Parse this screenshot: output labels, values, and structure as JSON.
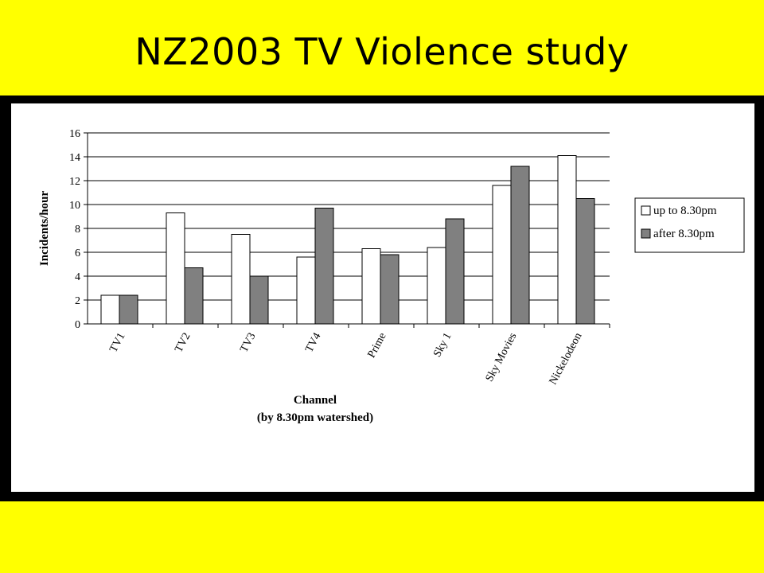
{
  "slide": {
    "title": "NZ2003 TV Violence study"
  },
  "colors": {
    "background": "#ffff00",
    "frame": "#000000",
    "series_up": "#ffffff",
    "series_after": "#808080"
  },
  "chart_data": {
    "type": "bar",
    "categories": [
      "TV1",
      "TV2",
      "TV3",
      "TV4",
      "Prime",
      "Sky 1",
      "Sky Movies",
      "Nickelodeon"
    ],
    "series": [
      {
        "name": "up to 8.30pm",
        "values": [
          2.4,
          9.3,
          7.5,
          5.6,
          6.3,
          6.4,
          11.6,
          14.1
        ]
      },
      {
        "name": "after 8.30pm",
        "values": [
          2.4,
          4.7,
          4.0,
          9.7,
          5.8,
          8.8,
          13.2,
          10.5
        ]
      }
    ],
    "ylim": [
      0,
      16
    ],
    "yticks": [
      0,
      2,
      4,
      6,
      8,
      10,
      12,
      14,
      16
    ],
    "ylabel": "Incidents/hour",
    "xlabel": "Channel",
    "xlabel2": "(by 8.30pm watershed)",
    "grid": true,
    "legend_position": "right"
  }
}
